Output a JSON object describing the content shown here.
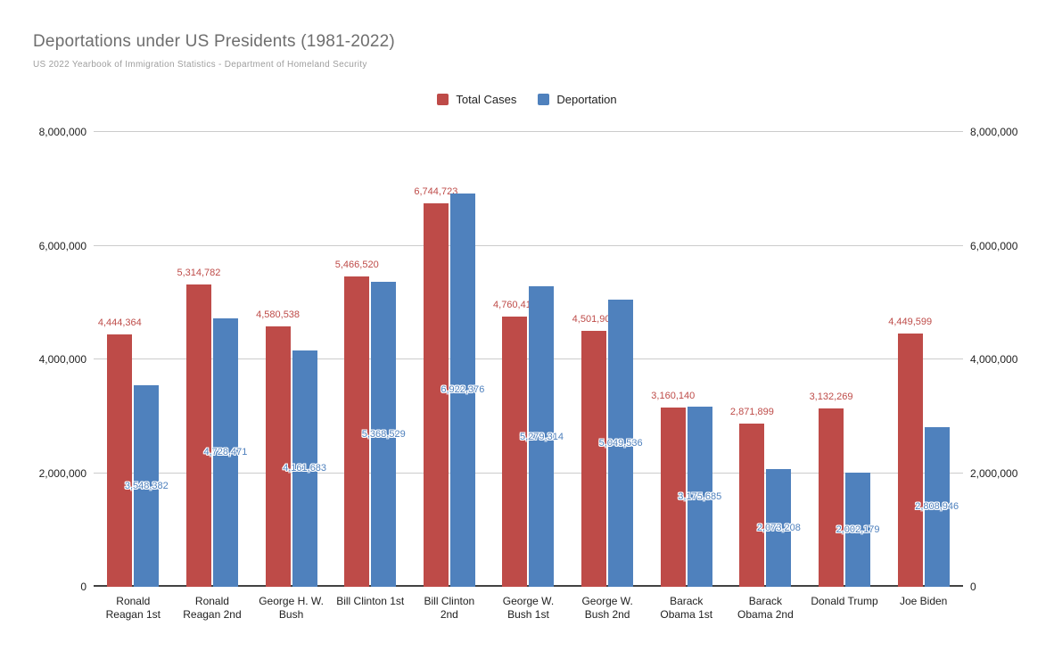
{
  "title": "Deportations under US Presidents (1981-2022)",
  "subtitle": "US 2022 Yearbook of Immigration Statistics - Department of Homeland Security",
  "colors": {
    "total_cases": "#be4b48",
    "deportation": "#4f81bd",
    "gridline": "#cccccc",
    "baseline": "#424242",
    "title_text": "#6e6e6e",
    "subtitle_text": "#9e9e9e",
    "axis_text": "#212121"
  },
  "legend": {
    "items": [
      {
        "label": "Total Cases",
        "color": "#be4b48"
      },
      {
        "label": "Deportation",
        "color": "#4f81bd"
      }
    ],
    "position": "top-center"
  },
  "chart_data": {
    "type": "bar",
    "title": "Deportations under US Presidents (1981-2022)",
    "subtitle": "US 2022 Yearbook of Immigration Statistics - Department of Homeland Security",
    "categories": [
      "Ronald Reagan 1st",
      "Ronald Reagan 2nd",
      "George H. W. Bush",
      "Bill Clinton 1st",
      "Bill Clinton 2nd",
      "George W. Bush 1st",
      "George W. Bush 2nd",
      "Barack Obama 1st",
      "Barack Obama 2nd",
      "Donald Trump",
      "Joe Biden"
    ],
    "category_lines": [
      [
        "Ronald",
        "Reagan 1st"
      ],
      [
        "Ronald",
        "Reagan 2nd"
      ],
      [
        "George H. W.",
        "Bush"
      ],
      [
        "Bill Clinton 1st"
      ],
      [
        "Bill Clinton",
        "2nd"
      ],
      [
        "George W.",
        "Bush 1st"
      ],
      [
        "George W.",
        "Bush 2nd"
      ],
      [
        "Barack",
        "Obama 1st"
      ],
      [
        "Barack",
        "Obama 2nd"
      ],
      [
        "Donald Trump"
      ],
      [
        "Joe Biden"
      ]
    ],
    "series": [
      {
        "name": "Total Cases",
        "color": "#be4b48",
        "label_placement": "above",
        "values": [
          4444364,
          5314782,
          4580538,
          5466520,
          6744723,
          4760410,
          4501905,
          3160140,
          2871899,
          3132269,
          4449599
        ]
      },
      {
        "name": "Deportation",
        "color": "#4f81bd",
        "label_placement": "inside",
        "values": [
          3548382,
          4728471,
          4161683,
          5368529,
          6922376,
          5279314,
          5049536,
          3175685,
          2073208,
          2002179,
          2808946
        ]
      }
    ],
    "xlabel": "",
    "ylabel": "",
    "ylim": [
      0,
      8000000
    ],
    "yticks": [
      0,
      2000000,
      4000000,
      6000000,
      8000000
    ],
    "ytick_labels": [
      "0",
      "2,000,000",
      "4,000,000",
      "6,000,000",
      "8,000,000"
    ],
    "dual_axis": true,
    "grid": true,
    "legend_position": "top"
  }
}
